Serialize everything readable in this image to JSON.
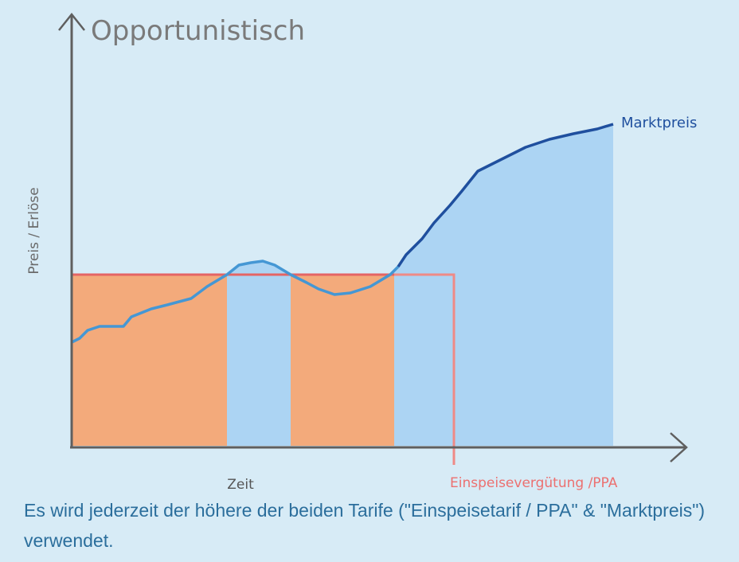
{
  "title": "Opportunistisch",
  "y_axis_label": "Preis / Erlöse",
  "x_axis_label": "Zeit",
  "market_label": "Marktpreis",
  "ppa_label": "Einspeisevergütung /PPA",
  "caption": "Es wird jederzeit der höhere der beiden Tarife (\"Einspeisetarif / PPA\" & \"Marktpreis\") verwendet."
}
